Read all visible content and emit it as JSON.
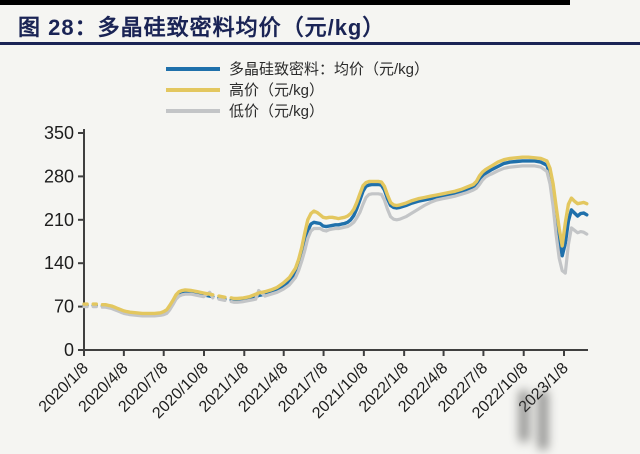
{
  "page": {
    "background": "#f5f5f2",
    "top_bar_color": "#000000",
    "accent_navy": "#1a2455",
    "axis_color": "#3f3f3f",
    "label_color": "#1d1d1d"
  },
  "chart_data": {
    "type": "line",
    "title": "图 28：多晶硅致密料均价（元/kg）",
    "xlabel": "",
    "ylabel": "",
    "ylim": [
      0,
      350
    ],
    "y_ticks": [
      0,
      70,
      140,
      210,
      280,
      350
    ],
    "x_tick_labels": [
      "2020/1/8",
      "2020/4/8",
      "2020/7/8",
      "2020/10/8",
      "2021/1/8",
      "2021/4/8",
      "2021/7/8",
      "2021/10/8",
      "2022/1/8",
      "2022/4/8",
      "2022/7/8",
      "2022/10/8",
      "2023/1/8"
    ],
    "grid": false,
    "legend_position": "top",
    "draw_order": [
      "avg",
      "low",
      "high"
    ],
    "x": [
      "2020/1/8",
      "2020/1/15",
      "2020/1/22",
      "2020/1/29",
      "2020/2/5",
      "2020/2/12",
      "2020/2/19",
      "2020/2/26",
      "2020/3/4",
      "2020/3/11",
      "2020/3/18",
      "2020/3/25",
      "2020/4/1",
      "2020/4/8",
      "2020/4/15",
      "2020/4/22",
      "2020/5/6",
      "2020/5/20",
      "2020/6/3",
      "2020/6/17",
      "2020/7/1",
      "2020/7/8",
      "2020/7/15",
      "2020/7/22",
      "2020/7/29",
      "2020/8/5",
      "2020/8/12",
      "2020/8/19",
      "2020/8/26",
      "2020/9/9",
      "2020/9/23",
      "2020/10/7",
      "2020/10/21",
      "2020/10/28",
      "2020/11/4",
      "2020/11/11",
      "2020/11/18",
      "2020/11/25",
      "2020/12/2",
      "2020/12/9",
      "2020/12/16",
      "2020/12/23",
      "2021/1/6",
      "2021/1/20",
      "2021/2/3",
      "2021/2/10",
      "2021/2/24",
      "2021/3/10",
      "2021/3/24",
      "2021/4/7",
      "2021/4/21",
      "2021/5/5",
      "2021/5/12",
      "2021/5/19",
      "2021/5/26",
      "2021/6/2",
      "2021/6/9",
      "2021/6/16",
      "2021/6/23",
      "2021/6/30",
      "2021/7/7",
      "2021/7/14",
      "2021/7/21",
      "2021/7/28",
      "2021/8/4",
      "2021/8/11",
      "2021/8/18",
      "2021/8/25",
      "2021/9/1",
      "2021/9/8",
      "2021/9/15",
      "2021/9/22",
      "2021/9/29",
      "2021/10/6",
      "2021/10/13",
      "2021/10/20",
      "2021/10/27",
      "2021/11/3",
      "2021/11/10",
      "2021/11/17",
      "2021/11/24",
      "2021/12/1",
      "2021/12/8",
      "2021/12/15",
      "2021/12/22",
      "2021/12/29",
      "2022/1/12",
      "2022/1/26",
      "2022/2/9",
      "2022/2/23",
      "2022/3/9",
      "2022/3/23",
      "2022/4/6",
      "2022/4/20",
      "2022/5/4",
      "2022/5/18",
      "2022/6/1",
      "2022/6/15",
      "2022/6/22",
      "2022/6/29",
      "2022/7/6",
      "2022/7/13",
      "2022/7/20",
      "2022/7/27",
      "2022/8/10",
      "2022/8/24",
      "2022/9/7",
      "2022/9/21",
      "2022/10/5",
      "2022/10/19",
      "2022/11/2",
      "2022/11/16",
      "2022/11/30",
      "2022/12/7",
      "2022/12/14",
      "2022/12/21",
      "2022/12/28",
      "2023/1/4",
      "2023/1/11",
      "2023/1/18",
      "2023/1/25",
      "2023/2/1",
      "2023/2/8",
      "2023/2/15",
      "2023/2/22",
      "2023/3/1"
    ],
    "series": [
      {
        "key": "avg",
        "name": "多晶硅致密料：均价（元/kg）",
        "color": "#1f70ab",
        "width": 3.4,
        "values": [
          72,
          72,
          null,
          72,
          72,
          null,
          71,
          71,
          70,
          69,
          67,
          65,
          63,
          61,
          60,
          59,
          58,
          57,
          57,
          57,
          58,
          59,
          62,
          68,
          76,
          85,
          90,
          92,
          93,
          93,
          91,
          89,
          87,
          86,
          null,
          84,
          83,
          82,
          null,
          81,
          80,
          80,
          81,
          83,
          86,
          88,
          90,
          93,
          96,
          102,
          110,
          123,
          135,
          152,
          172,
          192,
          203,
          206,
          205,
          204,
          200,
          199,
          200,
          201,
          202,
          202,
          203,
          204,
          206,
          210,
          217,
          228,
          242,
          256,
          264,
          266,
          267,
          267,
          267,
          266,
          258,
          244,
          233,
          230,
          229,
          230,
          233,
          237,
          240,
          242,
          244,
          246,
          248,
          250,
          252,
          255,
          258,
          262,
          266,
          273,
          280,
          285,
          288,
          291,
          296,
          301,
          303,
          304,
          305,
          305,
          305,
          303,
          298,
          282,
          252,
          213,
          175,
          152,
          172,
          208,
          226,
          221,
          216,
          220,
          221,
          218
        ]
      },
      {
        "key": "high",
        "name": "高价（元/kg）",
        "color": "#e3c75f",
        "width": 3.4,
        "values": [
          74,
          74,
          null,
          74,
          74,
          null,
          73,
          73,
          72,
          71,
          69,
          67,
          65,
          63,
          62,
          61,
          60,
          59,
          59,
          59,
          60,
          62,
          65,
          72,
          80,
          89,
          94,
          96,
          97,
          96,
          94,
          92,
          90,
          89,
          null,
          87,
          86,
          85,
          null,
          84,
          83,
          83,
          84,
          86,
          90,
          92,
          94,
          97,
          101,
          108,
          117,
          132,
          146,
          165,
          188,
          210,
          220,
          224,
          222,
          218,
          214,
          213,
          214,
          214,
          213,
          212,
          213,
          214,
          216,
          220,
          227,
          238,
          252,
          265,
          270,
          272,
          272,
          272,
          272,
          271,
          264,
          250,
          238,
          234,
          233,
          234,
          237,
          241,
          244,
          246,
          248,
          250,
          252,
          254,
          256,
          259,
          263,
          267,
          272,
          281,
          287,
          291,
          294,
          297,
          303,
          307,
          309,
          310,
          311,
          311,
          310,
          309,
          305,
          293,
          268,
          232,
          196,
          168,
          205,
          235,
          245,
          240,
          236,
          237,
          238,
          236
        ]
      },
      {
        "key": "low",
        "name": "低价（元/kg）",
        "color": "#c3c5c7",
        "width": 3.2,
        "values": [
          70,
          70,
          null,
          70,
          70,
          null,
          69,
          69,
          68,
          67,
          65,
          63,
          61,
          59,
          58,
          57,
          56,
          55,
          55,
          55,
          56,
          57,
          59,
          65,
          73,
          82,
          87,
          89,
          90,
          90,
          88,
          86,
          93,
          84,
          null,
          82,
          81,
          80,
          null,
          78,
          77,
          77,
          78,
          80,
          82,
          96,
          87,
          90,
          93,
          98,
          105,
          117,
          128,
          143,
          160,
          180,
          192,
          196,
          196,
          196,
          193,
          192,
          194,
          195,
          196,
          196,
          197,
          198,
          199,
          202,
          206,
          213,
          222,
          235,
          246,
          251,
          252,
          252,
          252,
          251,
          242,
          227,
          215,
          211,
          210,
          211,
          215,
          221,
          227,
          233,
          238,
          242,
          244,
          246,
          248,
          251,
          254,
          258,
          261,
          267,
          274,
          279,
          282,
          284,
          289,
          293,
          295,
          296,
          297,
          297,
          297,
          295,
          288,
          268,
          232,
          186,
          148,
          128,
          124,
          170,
          197,
          193,
          189,
          191,
          190,
          187
        ]
      }
    ]
  }
}
